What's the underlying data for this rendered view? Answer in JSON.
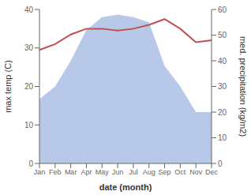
{
  "chart_data": {
    "type": "line",
    "xlabel": "date (month)",
    "ylabel": "max temp (C)",
    "y2label": "med. precipitation (kg/m2)",
    "categories": [
      "Jan",
      "Feb",
      "Mar",
      "Apr",
      "May",
      "Jun",
      "Jul",
      "Aug",
      "Sep",
      "Oct",
      "Nov",
      "Dec"
    ],
    "series": [
      {
        "type": "area",
        "color": "#b8c8e8",
        "axis": "y2",
        "values": [
          25,
          30,
          40,
          52,
          57,
          58,
          57,
          55,
          38,
          30,
          20,
          20
        ]
      },
      {
        "type": "line",
        "color": "#c0504d",
        "values": [
          29.5,
          31.0,
          33.5,
          35.0,
          35.0,
          34.5,
          35.0,
          36.0,
          37.5,
          35.0,
          31.5,
          32.0
        ]
      }
    ],
    "ylim": [
      0,
      40
    ],
    "yticks": [
      0,
      10,
      20,
      30,
      40
    ],
    "y2lim": [
      0,
      60
    ],
    "y2ticks": [
      0,
      10,
      20,
      30,
      40,
      50,
      60
    ],
    "grid": false
  }
}
